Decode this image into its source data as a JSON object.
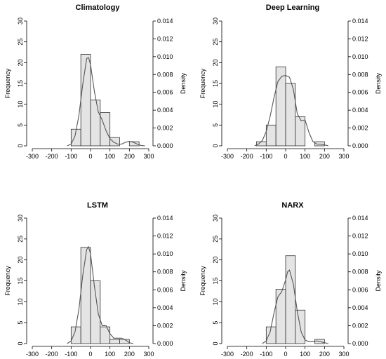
{
  "chart_data": [
    {
      "type": "histogram",
      "title": "Climatology",
      "xlabel": "",
      "ylabel": "Frequency",
      "ylabel_right": "Density",
      "xlim": [
        -300,
        300
      ],
      "ylim": [
        0,
        30
      ],
      "ylim_right": [
        0,
        0.014
      ],
      "x_ticks": [
        "-300",
        "-200",
        "-100",
        "0",
        "100",
        "200",
        "300"
      ],
      "y_ticks": [
        "0",
        "5",
        "10",
        "15",
        "20",
        "25",
        "30"
      ],
      "y_ticks_right": [
        "0.000",
        "0.002",
        "0.004",
        "0.006",
        "0.008",
        "0.010",
        "0.012",
        "0.014"
      ],
      "bin_edges": [
        -100,
        -50,
        0,
        50,
        100,
        150,
        200,
        250
      ],
      "counts": [
        4,
        22,
        11,
        8,
        2,
        0,
        1
      ],
      "density_curve": {
        "x": [
          -120,
          -100,
          -80,
          -60,
          -40,
          -20,
          -10,
          0,
          20,
          40,
          60,
          80,
          100,
          120,
          140,
          160,
          180,
          200,
          220,
          240,
          260,
          280
        ],
        "y": [
          0.0,
          0.0002,
          0.0011,
          0.0034,
          0.0069,
          0.0098,
          0.0099,
          0.0091,
          0.0061,
          0.0038,
          0.0029,
          0.0017,
          0.0008,
          0.0004,
          0.0002,
          0.0002,
          0.0004,
          0.0005,
          0.0004,
          0.0002,
          5e-05,
          0.0
        ]
      }
    },
    {
      "type": "histogram",
      "title": "Deep Learning",
      "xlabel": "",
      "ylabel": "Frequency",
      "ylabel_right": "Density",
      "xlim": [
        -300,
        300
      ],
      "ylim": [
        0,
        30
      ],
      "ylim_right": [
        0,
        0.014
      ],
      "x_ticks": [
        "-300",
        "-200",
        "-100",
        "0",
        "100",
        "200",
        "300"
      ],
      "y_ticks": [
        "0",
        "5",
        "10",
        "15",
        "20",
        "25",
        "30"
      ],
      "y_ticks_right": [
        "0.000",
        "0.002",
        "0.004",
        "0.006",
        "0.008",
        "0.010",
        "0.012",
        "0.014"
      ],
      "bin_edges": [
        -150,
        -100,
        -50,
        0,
        50,
        100,
        150,
        200
      ],
      "counts": [
        1,
        5,
        19,
        15,
        7,
        0,
        1
      ],
      "density_curve": {
        "x": [
          -160,
          -140,
          -120,
          -100,
          -80,
          -60,
          -40,
          -20,
          0,
          20,
          40,
          60,
          80,
          100,
          120,
          140,
          160,
          180,
          200,
          220
        ],
        "y": [
          0.0,
          0.0002,
          0.0006,
          0.0016,
          0.0033,
          0.0054,
          0.0072,
          0.0078,
          0.0079,
          0.0077,
          0.0063,
          0.0036,
          0.0028,
          0.0029,
          0.0015,
          0.0005,
          0.0002,
          0.0002,
          0.0001,
          0.0
        ]
      }
    },
    {
      "type": "histogram",
      "title": "LSTM",
      "xlabel": "",
      "ylabel": "Frequency",
      "ylabel_right": "Density",
      "xlim": [
        -300,
        300
      ],
      "ylim": [
        0,
        30
      ],
      "ylim_right": [
        0,
        0.014
      ],
      "x_ticks": [
        "-300",
        "-200",
        "-100",
        "0",
        "100",
        "200",
        "300"
      ],
      "y_ticks": [
        "0",
        "5",
        "10",
        "15",
        "20",
        "25",
        "30"
      ],
      "y_ticks_right": [
        "0.000",
        "0.002",
        "0.004",
        "0.006",
        "0.008",
        "0.010",
        "0.012",
        "0.014"
      ],
      "bin_edges": [
        -100,
        -50,
        0,
        50,
        100,
        150,
        200
      ],
      "counts": [
        4,
        23,
        15,
        4,
        1,
        1
      ],
      "density_curve": {
        "x": [
          -120,
          -100,
          -80,
          -60,
          -40,
          -20,
          -10,
          0,
          20,
          40,
          60,
          80,
          100,
          120,
          140,
          160,
          180,
          200,
          220
        ],
        "y": [
          0.0,
          0.0003,
          0.0013,
          0.0038,
          0.0076,
          0.0105,
          0.0108,
          0.01,
          0.0064,
          0.0033,
          0.002,
          0.002,
          0.0011,
          0.0006,
          0.0006,
          0.0006,
          0.0004,
          0.0001,
          0.0
        ]
      }
    },
    {
      "type": "histogram",
      "title": "NARX",
      "xlabel": "",
      "ylabel": "Frequency",
      "ylabel_right": "Density",
      "xlim": [
        -300,
        300
      ],
      "ylim": [
        0,
        30
      ],
      "ylim_right": [
        0,
        0.014
      ],
      "x_ticks": [
        "-300",
        "-200",
        "-100",
        "0",
        "100",
        "200",
        "300"
      ],
      "y_ticks": [
        "0",
        "5",
        "10",
        "15",
        "20",
        "25",
        "30"
      ],
      "y_ticks_right": [
        "0.000",
        "0.002",
        "0.004",
        "0.006",
        "0.008",
        "0.010",
        "0.012",
        "0.014"
      ],
      "bin_edges": [
        -100,
        -50,
        0,
        50,
        100,
        150,
        200
      ],
      "counts": [
        4,
        13,
        21,
        8,
        0,
        1
      ],
      "density_curve": {
        "x": [
          -120,
          -100,
          -80,
          -60,
          -40,
          -20,
          0,
          10,
          20,
          40,
          60,
          80,
          100,
          120,
          140,
          160,
          180,
          200,
          220
        ],
        "y": [
          0.0,
          0.0003,
          0.0013,
          0.0034,
          0.0052,
          0.0058,
          0.0071,
          0.008,
          0.0082,
          0.0066,
          0.0036,
          0.0013,
          0.0004,
          0.0002,
          0.0002,
          0.0003,
          0.0002,
          0.0001,
          0.0
        ]
      }
    }
  ]
}
